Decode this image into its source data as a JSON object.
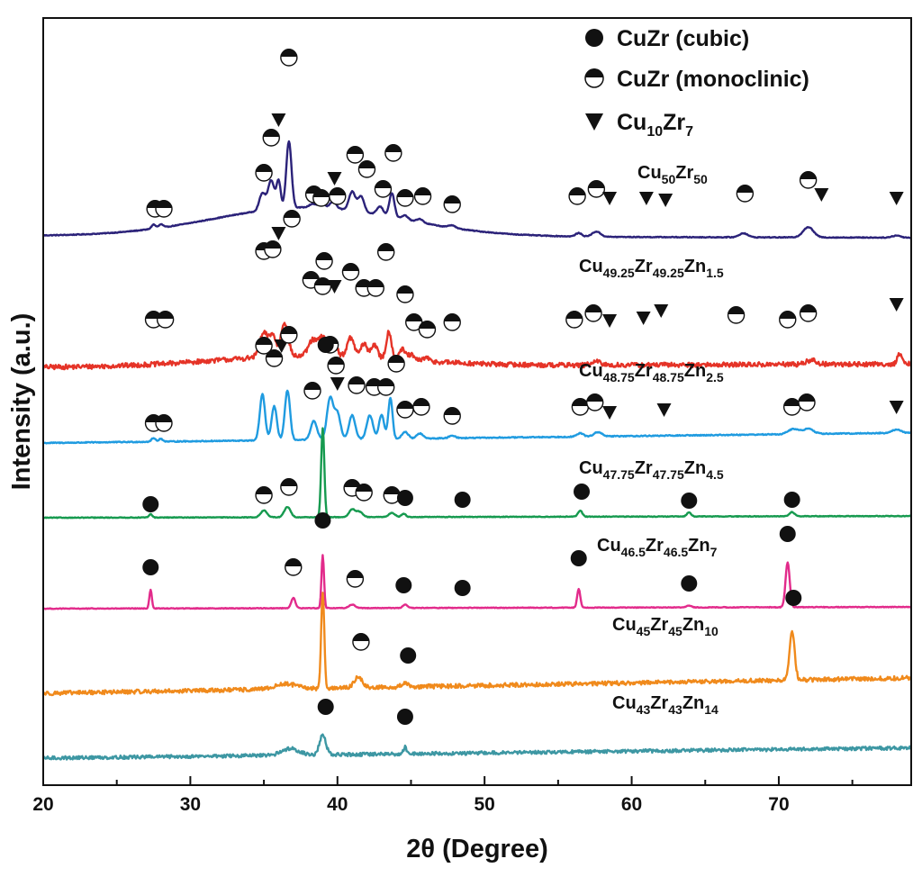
{
  "chart_data": {
    "type": "line",
    "title": "",
    "xlabel": "2θ (Degree)",
    "ylabel": "Intensity (a.u.)",
    "xlim": [
      20,
      79
    ],
    "xticks": [
      20,
      30,
      40,
      50,
      60,
      70
    ],
    "yticks_shown": false,
    "grid": false,
    "legend_position": "top-right",
    "legend": [
      {
        "marker": "filled-circle",
        "label": "CuZr (cubic)"
      },
      {
        "marker": "half-circle",
        "label": "CuZr (monoclinic)"
      },
      {
        "marker": "triangle-down",
        "label_main": "Cu",
        "label_sub": "10",
        "label_rest": "Zr",
        "label_sub2": "7"
      }
    ],
    "series": [
      {
        "name": "Cu50Zr50",
        "label_parts": [
          [
            "Cu",
            false
          ],
          [
            "50",
            true
          ],
          [
            "Zr",
            false
          ],
          [
            "50",
            true
          ]
        ],
        "color": "#2b2279",
        "baseline": 0.85,
        "noise": 0.012,
        "slope": -0.05,
        "label_at": [
          708,
          198
        ],
        "peaks": [
          [
            27.5,
            0.12,
            0.2
          ],
          [
            28.0,
            0.1,
            0.2
          ],
          [
            34.9,
            0.5,
            0.3
          ],
          [
            35.5,
            0.85,
            0.3
          ],
          [
            36.0,
            0.8,
            0.2
          ],
          [
            36.7,
            1.95,
            0.25
          ],
          [
            38.3,
            0.1,
            0.3
          ],
          [
            38.9,
            0.14,
            0.3
          ],
          [
            39.7,
            0.2,
            0.3
          ],
          [
            41.0,
            0.55,
            0.3
          ],
          [
            41.6,
            0.45,
            0.3
          ],
          [
            42.9,
            0.25,
            0.3
          ],
          [
            43.7,
            0.7,
            0.25
          ],
          [
            44.6,
            0.12,
            0.3
          ],
          [
            45.6,
            0.1,
            0.3
          ],
          [
            47.8,
            0.08,
            0.3
          ],
          [
            56.4,
            0.1,
            0.3
          ],
          [
            57.6,
            0.15,
            0.4
          ],
          [
            67.6,
            0.12,
            0.4
          ],
          [
            72.0,
            0.3,
            0.5
          ],
          [
            78.0,
            0.06,
            0.4
          ]
        ]
      },
      {
        "name": "Cu49.25Zr49.25Zn1.5",
        "label_parts": [
          [
            "Cu",
            false
          ],
          [
            "49.25",
            true
          ],
          [
            "Zr",
            false
          ],
          [
            "49.25",
            true
          ],
          [
            "Zn",
            false
          ],
          [
            "1.5",
            true
          ]
        ],
        "color": "#e53327",
        "baseline": 0.3,
        "noise": 0.07,
        "slope": 0.1,
        "label_at": [
          643,
          302
        ],
        "peaks": [
          [
            35.0,
            0.7,
            0.4
          ],
          [
            35.6,
            0.6,
            0.3
          ],
          [
            36.4,
            1.0,
            0.35
          ],
          [
            38.3,
            0.45,
            0.4
          ],
          [
            39.0,
            0.55,
            0.4
          ],
          [
            39.8,
            0.35,
            0.3
          ],
          [
            40.9,
            0.55,
            0.35
          ],
          [
            41.8,
            0.4,
            0.3
          ],
          [
            42.5,
            0.4,
            0.3
          ],
          [
            43.5,
            0.8,
            0.25
          ],
          [
            44.4,
            0.3,
            0.3
          ],
          [
            45.0,
            0.15,
            0.3
          ],
          [
            46.0,
            0.1,
            0.3
          ],
          [
            57.6,
            0.1,
            0.4
          ],
          [
            72.2,
            0.12,
            0.5
          ],
          [
            78.2,
            0.3,
            0.2
          ]
        ]
      },
      {
        "name": "Cu48.75Zr48.75Zn2.5",
        "label_parts": [
          [
            "Cu",
            false
          ],
          [
            "48.75",
            true
          ],
          [
            "Zr",
            false
          ],
          [
            "48.75",
            true
          ],
          [
            "Zn",
            false
          ],
          [
            "2.5",
            true
          ]
        ],
        "color": "#1f9be0",
        "baseline": 0.0,
        "noise": 0.015,
        "slope": 0.3,
        "label_at": [
          643,
          418
        ],
        "peaks": [
          [
            27.5,
            0.1,
            0.2
          ],
          [
            28.0,
            0.08,
            0.2
          ],
          [
            34.9,
            1.35,
            0.25
          ],
          [
            35.7,
            1.0,
            0.25
          ],
          [
            36.6,
            1.45,
            0.25
          ],
          [
            38.4,
            0.55,
            0.3
          ],
          [
            39.5,
            1.2,
            0.3
          ],
          [
            40.0,
            0.75,
            0.3
          ],
          [
            41.0,
            0.7,
            0.3
          ],
          [
            42.2,
            0.7,
            0.3
          ],
          [
            43.0,
            0.7,
            0.25
          ],
          [
            43.6,
            1.2,
            0.2
          ],
          [
            44.6,
            0.2,
            0.3
          ],
          [
            45.6,
            0.15,
            0.3
          ],
          [
            47.8,
            0.08,
            0.3
          ],
          [
            56.5,
            0.1,
            0.3
          ],
          [
            57.7,
            0.12,
            0.4
          ],
          [
            71.0,
            0.15,
            0.5
          ],
          [
            72.0,
            0.15,
            0.5
          ],
          [
            78.0,
            0.1,
            0.4
          ]
        ]
      },
      {
        "name": "Cu47.75Zr47.75Zn4.5",
        "label_parts": [
          [
            "Cu",
            false
          ],
          [
            "47.75",
            true
          ],
          [
            "Zr",
            false
          ],
          [
            "47.75",
            true
          ],
          [
            "Zn",
            false
          ],
          [
            "4.5",
            true
          ]
        ],
        "color": "#169a4f",
        "baseline": 0.0,
        "noise": 0.01,
        "slope": 0.05,
        "label_at": [
          643,
          526
        ],
        "peaks": [
          [
            27.3,
            0.1,
            0.15
          ],
          [
            35.0,
            0.2,
            0.3
          ],
          [
            36.6,
            0.3,
            0.3
          ],
          [
            39.0,
            2.6,
            0.15
          ],
          [
            41.0,
            0.22,
            0.3
          ],
          [
            41.5,
            0.15,
            0.3
          ],
          [
            43.7,
            0.12,
            0.3
          ],
          [
            44.5,
            0.1,
            0.2
          ],
          [
            56.5,
            0.18,
            0.2
          ],
          [
            63.9,
            0.12,
            0.2
          ],
          [
            70.9,
            0.12,
            0.25
          ]
        ]
      },
      {
        "name": "Cu46.5Zr46.5Zn7",
        "label_parts": [
          [
            "Cu",
            false
          ],
          [
            "46.5",
            true
          ],
          [
            "Zr",
            false
          ],
          [
            "46.5",
            true
          ],
          [
            "Zn",
            false
          ],
          [
            "7",
            true
          ]
        ],
        "color": "#e22b8b",
        "baseline": 0.0,
        "noise": 0.01,
        "slope": 0.05,
        "label_at": [
          663,
          612
        ],
        "peaks": [
          [
            27.3,
            0.55,
            0.12
          ],
          [
            37.0,
            0.3,
            0.2
          ],
          [
            39.0,
            1.55,
            0.12
          ],
          [
            41.0,
            0.1,
            0.3
          ],
          [
            44.6,
            0.1,
            0.2
          ],
          [
            56.4,
            0.55,
            0.15
          ],
          [
            63.9,
            0.06,
            0.2
          ],
          [
            70.6,
            1.3,
            0.2
          ]
        ]
      },
      {
        "name": "Cu45Zr45Zn10",
        "label_parts": [
          [
            "Cu",
            false
          ],
          [
            "45",
            true
          ],
          [
            "Zr",
            false
          ],
          [
            "45",
            true
          ],
          [
            "Zn",
            false
          ],
          [
            "10",
            true
          ]
        ],
        "color": "#f08a1c",
        "baseline": 0.0,
        "noise": 0.06,
        "slope": 0.45,
        "label_at": [
          680,
          700
        ],
        "peaks": [
          [
            36.5,
            0.15,
            1.0
          ],
          [
            39.0,
            2.8,
            0.15
          ],
          [
            41.4,
            0.3,
            0.4
          ],
          [
            44.6,
            0.12,
            0.3
          ],
          [
            70.9,
            1.4,
            0.25
          ]
        ]
      },
      {
        "name": "Cu43Zr43Zn14",
        "label_parts": [
          [
            "Cu",
            false
          ],
          [
            "43",
            true
          ],
          [
            "Zr",
            false
          ],
          [
            "43",
            true
          ],
          [
            "Zn",
            false
          ],
          [
            "14",
            true
          ]
        ],
        "color": "#3d97a3",
        "baseline": 0.0,
        "noise": 0.05,
        "slope": 0.3,
        "label_at": [
          680,
          787
        ],
        "peaks": [
          [
            36.8,
            0.2,
            0.8
          ],
          [
            39.0,
            0.6,
            0.3
          ],
          [
            44.6,
            0.2,
            0.15
          ]
        ]
      }
    ]
  }
}
